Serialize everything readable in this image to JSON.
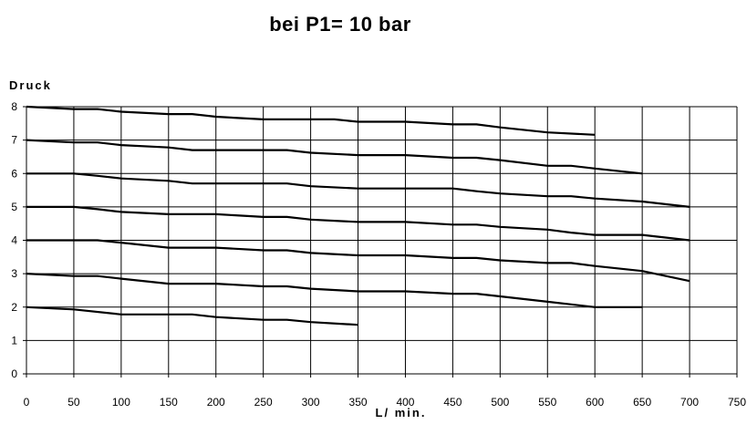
{
  "chart_data": {
    "type": "line",
    "title": "bei P1= 10 bar",
    "xlabel": "L/ min.",
    "ylabel": "Druck",
    "xlim": [
      0,
      750
    ],
    "ylim": [
      0,
      8
    ],
    "xticks": [
      0,
      50,
      100,
      150,
      200,
      250,
      300,
      350,
      400,
      450,
      500,
      550,
      600,
      650,
      700,
      750
    ],
    "yticks": [
      0,
      1,
      2,
      3,
      4,
      5,
      6,
      7,
      8
    ],
    "grid": true,
    "legend": "none",
    "line_color": "#000000",
    "series": [
      {
        "x": [
          0,
          50,
          75,
          100,
          150,
          175,
          200,
          250,
          275,
          300,
          325,
          350,
          400,
          450,
          475,
          500,
          550,
          600
        ],
        "y": [
          8.0,
          7.93,
          7.93,
          7.85,
          7.78,
          7.78,
          7.7,
          7.62,
          7.62,
          7.62,
          7.62,
          7.55,
          7.55,
          7.47,
          7.47,
          7.38,
          7.23,
          7.16
        ]
      },
      {
        "x": [
          0,
          50,
          75,
          100,
          150,
          175,
          200,
          250,
          275,
          300,
          350,
          400,
          450,
          475,
          500,
          550,
          575,
          600,
          650
        ],
        "y": [
          7.0,
          6.93,
          6.93,
          6.85,
          6.78,
          6.7,
          6.7,
          6.7,
          6.7,
          6.62,
          6.55,
          6.55,
          6.47,
          6.47,
          6.4,
          6.23,
          6.23,
          6.15,
          6.0
        ]
      },
      {
        "x": [
          0,
          50,
          75,
          100,
          150,
          175,
          200,
          250,
          275,
          300,
          350,
          400,
          450,
          475,
          500,
          550,
          575,
          600,
          650,
          700
        ],
        "y": [
          6.0,
          6.0,
          5.93,
          5.85,
          5.78,
          5.7,
          5.7,
          5.7,
          5.7,
          5.62,
          5.55,
          5.55,
          5.55,
          5.47,
          5.4,
          5.32,
          5.32,
          5.25,
          5.16,
          5.0
        ]
      },
      {
        "x": [
          0,
          50,
          75,
          100,
          150,
          175,
          200,
          250,
          275,
          300,
          350,
          400,
          450,
          475,
          500,
          550,
          575,
          600,
          650,
          700
        ],
        "y": [
          5.0,
          5.0,
          4.93,
          4.85,
          4.78,
          4.78,
          4.78,
          4.7,
          4.7,
          4.62,
          4.55,
          4.55,
          4.47,
          4.47,
          4.4,
          4.32,
          4.23,
          4.16,
          4.16,
          4.0
        ]
      },
      {
        "x": [
          0,
          50,
          75,
          100,
          150,
          175,
          200,
          250,
          275,
          300,
          350,
          400,
          450,
          475,
          500,
          550,
          575,
          600,
          650,
          700
        ],
        "y": [
          4.0,
          4.0,
          4.0,
          3.93,
          3.78,
          3.78,
          3.78,
          3.7,
          3.7,
          3.62,
          3.55,
          3.55,
          3.47,
          3.47,
          3.4,
          3.32,
          3.32,
          3.23,
          3.08,
          2.78
        ]
      },
      {
        "x": [
          0,
          50,
          75,
          100,
          150,
          175,
          200,
          250,
          275,
          300,
          350,
          400,
          450,
          475,
          500,
          550,
          575,
          600,
          650
        ],
        "y": [
          3.0,
          2.93,
          2.93,
          2.85,
          2.7,
          2.7,
          2.7,
          2.62,
          2.62,
          2.55,
          2.47,
          2.47,
          2.4,
          2.4,
          2.32,
          2.16,
          2.08,
          2.0,
          2.0
        ]
      },
      {
        "x": [
          0,
          50,
          100,
          150,
          175,
          200,
          250,
          275,
          300,
          350
        ],
        "y": [
          2.0,
          1.93,
          1.78,
          1.78,
          1.78,
          1.7,
          1.62,
          1.62,
          1.55,
          1.47
        ]
      }
    ]
  }
}
